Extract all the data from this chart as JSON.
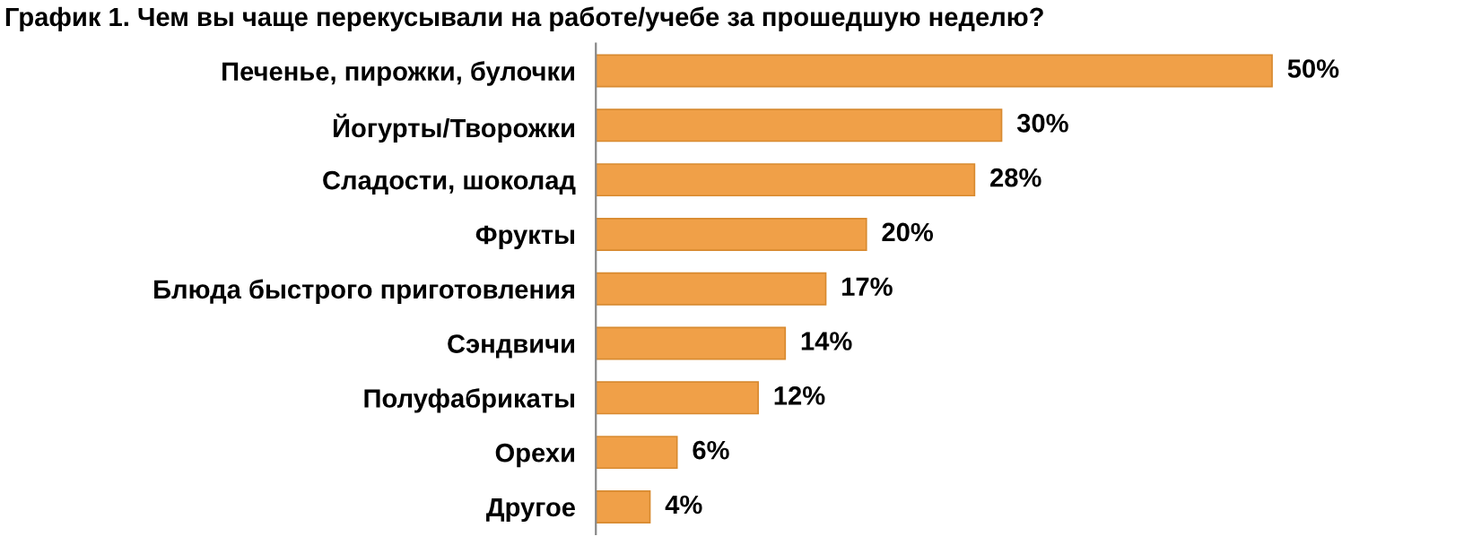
{
  "chart_data": {
    "type": "bar",
    "orientation": "horizontal",
    "title": "График 1. Чем вы чаще перекусывали на работе/учебе за прошедшую неделю?",
    "categories": [
      "Печенье, пирожки, булочки",
      "Йогурты/Творожки",
      "Сладости, шоколад",
      "Фрукты",
      "Блюда быстрого приготовления",
      "Сэндвичи",
      "Полуфабрикаты",
      "Орехи",
      "Другое"
    ],
    "values": [
      50,
      30,
      28,
      20,
      17,
      14,
      12,
      6,
      4
    ],
    "value_labels": [
      "50%",
      "30%",
      "28%",
      "20%",
      "17%",
      "14%",
      "12%",
      "6%",
      "4%"
    ],
    "color": "#f0a048",
    "tick_labels": "y",
    "grid": false,
    "legend": false
  }
}
